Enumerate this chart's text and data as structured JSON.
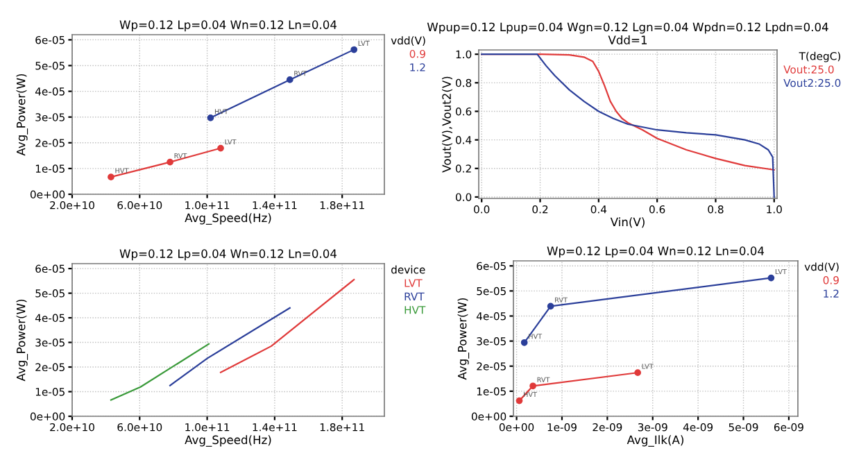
{
  "chart_data": [
    {
      "type": "line",
      "title": "Wp=0.12 Lp=0.04 Wn=0.12 Ln=0.04",
      "xlabel": "Avg_Speed(Hz)",
      "ylabel": "Avg_Power(W)",
      "legend_title": "vdd(V)",
      "legend": "right",
      "marker": "circle",
      "grid": true,
      "series": [
        {
          "name": "0.9",
          "color": "#e03a3a",
          "x": [
            43000000000.0,
            78000000000.0,
            108000000000.0
          ],
          "values": [
            6.7e-06,
            1.25e-05,
            1.79e-05
          ]
        },
        {
          "name": "1.2",
          "color": "#2b3f9a",
          "x": [
            102000000000.0,
            149000000000.0,
            187000000000.0
          ],
          "values": [
            2.97e-05,
            4.45e-05,
            5.62e-05
          ]
        }
      ],
      "xlim": [
        20000000000.0,
        205000000000.0
      ],
      "xticks": [
        {
          "value": 20000000000.0,
          "label": "2.0e+10"
        },
        {
          "value": 60000000000.0,
          "label": "6.0e+10"
        },
        {
          "value": 100000000000.0,
          "label": "1.0e+11"
        },
        {
          "value": 140000000000.0,
          "label": "1.4e+11"
        },
        {
          "value": 180000000000.0,
          "label": "1.8e+11"
        }
      ],
      "ylim": [
        0,
        6.2e-05
      ],
      "yticks": [
        {
          "value": 0,
          "label": "0e+00"
        },
        {
          "value": 1e-05,
          "label": "1e-05"
        },
        {
          "value": 2e-05,
          "label": "2e-05"
        },
        {
          "value": 3e-05,
          "label": "3e-05"
        },
        {
          "value": 4e-05,
          "label": "4e-05"
        },
        {
          "value": 5e-05,
          "label": "5e-05"
        },
        {
          "value": 6e-05,
          "label": "6e-05"
        }
      ],
      "annotations": [
        {
          "text": "HVT",
          "x": 43000000000.0,
          "y": 6.7e-06
        },
        {
          "text": "RVT",
          "x": 78000000000.0,
          "y": 1.25e-05
        },
        {
          "text": "LVT",
          "x": 108000000000.0,
          "y": 1.79e-05
        },
        {
          "text": "HVT",
          "x": 102000000000.0,
          "y": 2.97e-05
        },
        {
          "text": "RVT",
          "x": 149000000000.0,
          "y": 4.45e-05
        },
        {
          "text": "LVT",
          "x": 187000000000.0,
          "y": 5.62e-05
        }
      ]
    },
    {
      "type": "line",
      "title": "Wpup=0.12 Lpup=0.04 Wgn=0.12 Lgn=0.04 Wpdn=0.12 Lpdn=0.04\nVdd=1",
      "xlabel": "Vin(V)",
      "ylabel": "Vout(V),Vout2(V)",
      "legend_title": "T(degC)",
      "legend": "right",
      "grid": true,
      "series": [
        {
          "name": "Vout:25.0",
          "color": "#e03a3a",
          "x": [
            0,
            0.1,
            0.2,
            0.3,
            0.35,
            0.38,
            0.4,
            0.42,
            0.44,
            0.46,
            0.48,
            0.5,
            0.55,
            0.6,
            0.7,
            0.8,
            0.9,
            1.0
          ],
          "values": [
            1.0,
            1.0,
            1.0,
            0.995,
            0.98,
            0.95,
            0.88,
            0.78,
            0.67,
            0.6,
            0.55,
            0.52,
            0.47,
            0.41,
            0.33,
            0.27,
            0.22,
            0.19
          ]
        },
        {
          "name": "Vout2:25.0",
          "color": "#2b3f9a",
          "x": [
            0,
            0.1,
            0.19,
            0.22,
            0.25,
            0.3,
            0.35,
            0.4,
            0.45,
            0.5,
            0.6,
            0.7,
            0.8,
            0.9,
            0.95,
            0.98,
            0.995,
            1.0
          ],
          "values": [
            1.0,
            1.0,
            1.0,
            0.92,
            0.85,
            0.75,
            0.67,
            0.6,
            0.55,
            0.51,
            0.47,
            0.45,
            0.435,
            0.4,
            0.37,
            0.33,
            0.28,
            0.0
          ]
        }
      ],
      "xlim": [
        -0.01,
        1.01
      ],
      "xticks": [
        {
          "value": 0,
          "label": "0.0"
        },
        {
          "value": 0.2,
          "label": "0.2"
        },
        {
          "value": 0.4,
          "label": "0.4"
        },
        {
          "value": 0.6,
          "label": "0.6"
        },
        {
          "value": 0.8,
          "label": "0.8"
        },
        {
          "value": 1.0,
          "label": "1.0"
        }
      ],
      "ylim": [
        -0.01,
        1.03
      ],
      "yticks": [
        {
          "value": 0,
          "label": "0.0"
        },
        {
          "value": 0.2,
          "label": "0.2"
        },
        {
          "value": 0.4,
          "label": "0.4"
        },
        {
          "value": 0.6,
          "label": "0.6"
        },
        {
          "value": 0.8,
          "label": "0.8"
        },
        {
          "value": 1.0,
          "label": "1.0"
        }
      ]
    },
    {
      "type": "line",
      "title": "Wp=0.12 Lp=0.04 Wn=0.12 Ln=0.04",
      "xlabel": "Avg_Speed(Hz)",
      "ylabel": "Avg_Power(W)",
      "legend_title": "device",
      "legend": "right",
      "grid": true,
      "series": [
        {
          "name": "LVT",
          "color": "#e03a3a",
          "x": [
            108000000000.0,
            138000000000.0,
            187000000000.0
          ],
          "values": [
            1.78e-05,
            2.85e-05,
            5.55e-05
          ]
        },
        {
          "name": "RVT",
          "color": "#2b3f9a",
          "x": [
            78000000000.0,
            100000000000.0,
            149000000000.0
          ],
          "values": [
            1.25e-05,
            2.35e-05,
            4.4e-05
          ]
        },
        {
          "name": "HVT",
          "color": "#3a9a3a",
          "x": [
            43000000000.0,
            60500000000.0,
            101000000000.0
          ],
          "values": [
            6.6e-06,
            1.19e-05,
            2.94e-05
          ]
        }
      ],
      "xlim": [
        20000000000.0,
        205000000000.0
      ],
      "xticks": [
        {
          "value": 20000000000.0,
          "label": "2.0e+10"
        },
        {
          "value": 60000000000.0,
          "label": "6.0e+10"
        },
        {
          "value": 100000000000.0,
          "label": "1.0e+11"
        },
        {
          "value": 140000000000.0,
          "label": "1.4e+11"
        },
        {
          "value": 180000000000.0,
          "label": "1.8e+11"
        }
      ],
      "ylim": [
        0,
        6.2e-05
      ],
      "yticks": [
        {
          "value": 0,
          "label": "0e+00"
        },
        {
          "value": 1e-05,
          "label": "1e-05"
        },
        {
          "value": 2e-05,
          "label": "2e-05"
        },
        {
          "value": 3e-05,
          "label": "3e-05"
        },
        {
          "value": 4e-05,
          "label": "4e-05"
        },
        {
          "value": 5e-05,
          "label": "5e-05"
        },
        {
          "value": 6e-05,
          "label": "6e-05"
        }
      ]
    },
    {
      "type": "line",
      "title": "Wp=0.12 Lp=0.04 Wn=0.12 Ln=0.04",
      "xlabel": "Avg_Ilk(A)",
      "ylabel": "Avg_Power(W)",
      "legend_title": "vdd(V)",
      "legend": "right",
      "marker": "circle",
      "grid": true,
      "series": [
        {
          "name": "0.9",
          "color": "#e03a3a",
          "x": [
            6e-11,
            3.6e-10,
            2.67e-09
          ],
          "values": [
            6.2e-06,
            1.21e-05,
            1.74e-05
          ]
        },
        {
          "name": "1.2",
          "color": "#2b3f9a",
          "x": [
            1.7e-10,
            7.5e-10,
            5.61e-09
          ],
          "values": [
            2.94e-05,
            4.39e-05,
            5.52e-05
          ]
        }
      ],
      "xlim": [
        -7e-11,
        6.2e-09
      ],
      "xticks": [
        {
          "value": 0,
          "label": "0e+00"
        },
        {
          "value": 1e-09,
          "label": "1e-09"
        },
        {
          "value": 2e-09,
          "label": "2e-09"
        },
        {
          "value": 3e-09,
          "label": "3e-09"
        },
        {
          "value": 4e-09,
          "label": "4e-09"
        },
        {
          "value": 5e-09,
          "label": "5e-09"
        },
        {
          "value": 6e-09,
          "label": "6e-09"
        }
      ],
      "ylim": [
        0,
        6.2e-05
      ],
      "yticks": [
        {
          "value": 0,
          "label": "0e+00"
        },
        {
          "value": 1e-05,
          "label": "1e-05"
        },
        {
          "value": 2e-05,
          "label": "2e-05"
        },
        {
          "value": 3e-05,
          "label": "3e-05"
        },
        {
          "value": 4e-05,
          "label": "4e-05"
        },
        {
          "value": 5e-05,
          "label": "5e-05"
        },
        {
          "value": 6e-05,
          "label": "6e-05"
        }
      ],
      "annotations": [
        {
          "text": "HVT",
          "x": 6e-11,
          "y": 6.2e-06
        },
        {
          "text": "RVT",
          "x": 3.6e-10,
          "y": 1.21e-05
        },
        {
          "text": "LVT",
          "x": 2.67e-09,
          "y": 1.74e-05
        },
        {
          "text": "HVT",
          "x": 1.7e-10,
          "y": 2.94e-05
        },
        {
          "text": "RVT",
          "x": 7.5e-10,
          "y": 4.39e-05
        },
        {
          "text": "LVT",
          "x": 5.61e-09,
          "y": 5.52e-05
        }
      ]
    }
  ]
}
